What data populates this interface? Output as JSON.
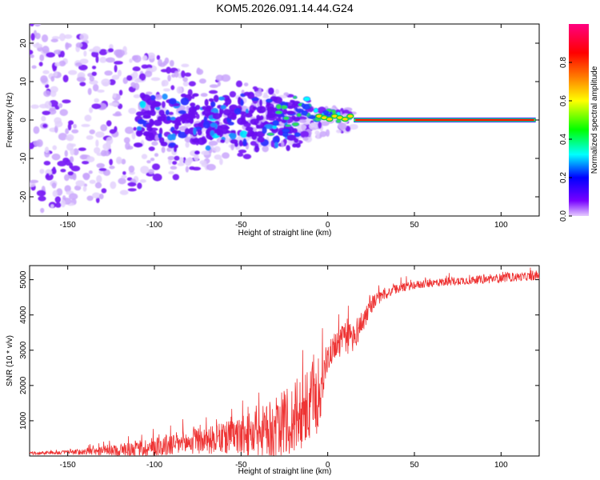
{
  "title": "KOM5.2026.091.14.44.G24",
  "chart_data": [
    {
      "type": "heatmap",
      "xlabel": "Height of straight line (km)",
      "ylabel": "Frequency (Hz)",
      "xlim": [
        -172,
        122
      ],
      "ylim": [
        -25,
        25
      ],
      "xticks": [
        -150,
        -100,
        -50,
        0,
        50,
        100
      ],
      "yticks": [
        -20,
        -10,
        0,
        10,
        20
      ],
      "colorbar": {
        "label": "Normalized spectral amplitude",
        "range": [
          0,
          1
        ],
        "ticks": [
          0.0,
          0.2,
          0.4,
          0.6,
          0.8
        ],
        "tick_labels": [
          "0.0",
          "0.2",
          "0.4",
          "0.6",
          "0.8"
        ],
        "colormap": [
          "#e6ccff",
          "#7700ff",
          "#0000ff",
          "#00ffff",
          "#00ff00",
          "#ffff00",
          "#ff8000",
          "#ff0000",
          "#ff0080"
        ]
      },
      "features": {
        "noise_scatter_x_range": [
          -172,
          -5
        ],
        "fragments_x_range": [
          -35,
          15
        ],
        "fragments_freq": 1,
        "stable_line_x_range": [
          15,
          120
        ],
        "stable_line_freq": 0,
        "stable_line_amplitude": 0.85
      }
    },
    {
      "type": "line",
      "xlabel": "Height of straight line (km)",
      "ylabel": "SNR (10 * v/v)",
      "xlim": [
        -172,
        122
      ],
      "ylim": [
        0,
        5400
      ],
      "xticks": [
        -150,
        -100,
        -50,
        0,
        50,
        100
      ],
      "yticks": [
        1000,
        2000,
        3000,
        4000,
        5000
      ],
      "color": "#ee3333",
      "series": [
        {
          "name": "SNR",
          "x": [
            -172,
            -150,
            -125,
            -110,
            -100,
            -90,
            -80,
            -70,
            -60,
            -50,
            -40,
            -30,
            -25,
            -20,
            -15,
            -10,
            -8,
            -5,
            -2,
            0,
            5,
            10,
            15,
            20,
            25,
            30,
            40,
            50,
            60,
            70,
            80,
            90,
            100,
            110,
            122
          ],
          "base": [
            80,
            100,
            150,
            200,
            250,
            320,
            380,
            440,
            500,
            560,
            640,
            760,
            880,
            1000,
            1200,
            1350,
            1450,
            1700,
            2300,
            2800,
            3200,
            3300,
            3400,
            3800,
            4300,
            4500,
            4750,
            4850,
            4900,
            4950,
            4980,
            5000,
            5050,
            5080,
            5100
          ],
          "spread": [
            40,
            60,
            150,
            250,
            300,
            330,
            360,
            380,
            450,
            550,
            700,
            900,
            1000,
            1100,
            1150,
            1100,
            1500,
            900,
            600,
            400,
            400,
            500,
            450,
            350,
            250,
            180,
            130,
            120,
            120,
            120,
            120,
            120,
            130,
            120,
            120
          ]
        }
      ]
    }
  ]
}
